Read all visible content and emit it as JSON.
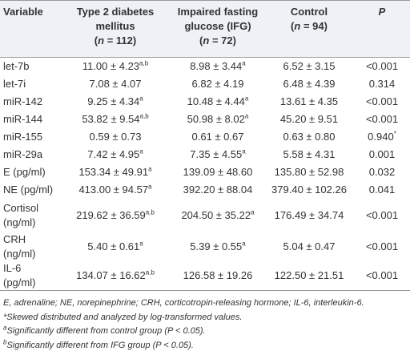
{
  "table": {
    "header": [
      {
        "title": "Variable"
      },
      {
        "title": "Type 2 diabetes mellitus",
        "sample": [
          "(",
          "n",
          " = 112)"
        ]
      },
      {
        "title": "Impaired fasting glucose (IFG)",
        "sample": [
          "(",
          "n",
          " = 72)"
        ]
      },
      {
        "title": "Control",
        "sample": [
          "(",
          "n",
          " = 94)"
        ]
      },
      {
        "title": "P"
      }
    ],
    "rows": [
      [
        {
          "text": "let-7b"
        },
        {
          "text": "11.00 ± 4.23",
          "sup": "a,b"
        },
        {
          "text": "8.98 ± 3.44",
          "sup": "a"
        },
        {
          "text": "6.52 ± 3.15"
        },
        {
          "text": "<0.001"
        }
      ],
      [
        {
          "text": "let-7i"
        },
        {
          "text": "7.08 ± 4.07"
        },
        {
          "text": "6.82 ± 4.19"
        },
        {
          "text": "6.48 ± 4.39"
        },
        {
          "text": "0.314"
        }
      ],
      [
        {
          "text": "miR-142"
        },
        {
          "text": "9.25 ± 4.34",
          "sup": "a"
        },
        {
          "text": "10.48 ± 4.44",
          "sup": "a"
        },
        {
          "text": "13.61 ± 4.35"
        },
        {
          "text": "<0.001"
        }
      ],
      [
        {
          "text": "miR-144"
        },
        {
          "text": "53.82 ± 9.54",
          "sup": "a,b"
        },
        {
          "text": "50.98 ± 8.02",
          "sup": "a"
        },
        {
          "text": "45.20 ± 9.51"
        },
        {
          "text": "<0.001"
        }
      ],
      [
        {
          "text": "miR-155"
        },
        {
          "text": "0.59 ± 0.73"
        },
        {
          "text": "0.61 ± 0.67"
        },
        {
          "text": "0.63 ± 0.80"
        },
        {
          "text": "0.940",
          "sup": "*"
        }
      ],
      [
        {
          "text": "miR-29a"
        },
        {
          "text": "7.42 ± 4.95",
          "sup": "a"
        },
        {
          "text": "7.35 ± 4.55",
          "sup": "a"
        },
        {
          "text": "5.58 ± 4.31"
        },
        {
          "text": "0.001"
        }
      ],
      [
        {
          "text": "E (pg/ml)"
        },
        {
          "text": "153.34 ± 49.91",
          "sup": "a"
        },
        {
          "text": "139.09 ± 48.60"
        },
        {
          "text": "135.80 ± 52.98"
        },
        {
          "text": "0.032"
        }
      ],
      [
        {
          "text": "NE (pg/ml)"
        },
        {
          "text": "413.00 ± 94.57",
          "sup": "a"
        },
        {
          "text": "392.20 ± 88.04"
        },
        {
          "text": "379.40 ± 102.26"
        },
        {
          "text": "0.041"
        }
      ],
      [
        {
          "text": "Cortisol (ng/ml)"
        },
        {
          "text": "219.62 ± 36.59",
          "sup": "a,b"
        },
        {
          "text": "204.50 ± 35.22",
          "sup": "a"
        },
        {
          "text": "176.49 ± 34.74"
        },
        {
          "text": "<0.001"
        }
      ],
      [
        {
          "text": "CRH (ng/ml)"
        },
        {
          "text": "5.40 ± 0.61",
          "sup": "a"
        },
        {
          "text": "5.39 ± 0.55",
          "sup": "a"
        },
        {
          "text": "5.04 ± 0.47"
        },
        {
          "text": "<0.001"
        }
      ],
      [
        {
          "text": "IL-6 (pg/ml)"
        },
        {
          "text": "134.07 ± 16.62",
          "sup": "a,b"
        },
        {
          "text": "126.58 ± 19.26"
        },
        {
          "text": "122.50 ± 21.51"
        },
        {
          "text": "<0.001"
        }
      ]
    ],
    "footnotes": [
      {
        "text": "E, adrenaline; NE, norepinephrine; CRH, corticotropin-releasing hormone; IL-6, interleukin-6."
      },
      {
        "text": "*Skewed distributed and analyzed by log-transformed values."
      },
      {
        "mark": "a",
        "text": "Significantly different from control group (P < 0.05)."
      },
      {
        "mark": "b",
        "text": "Significantly different from IFG group (P < 0.05)."
      }
    ]
  }
}
